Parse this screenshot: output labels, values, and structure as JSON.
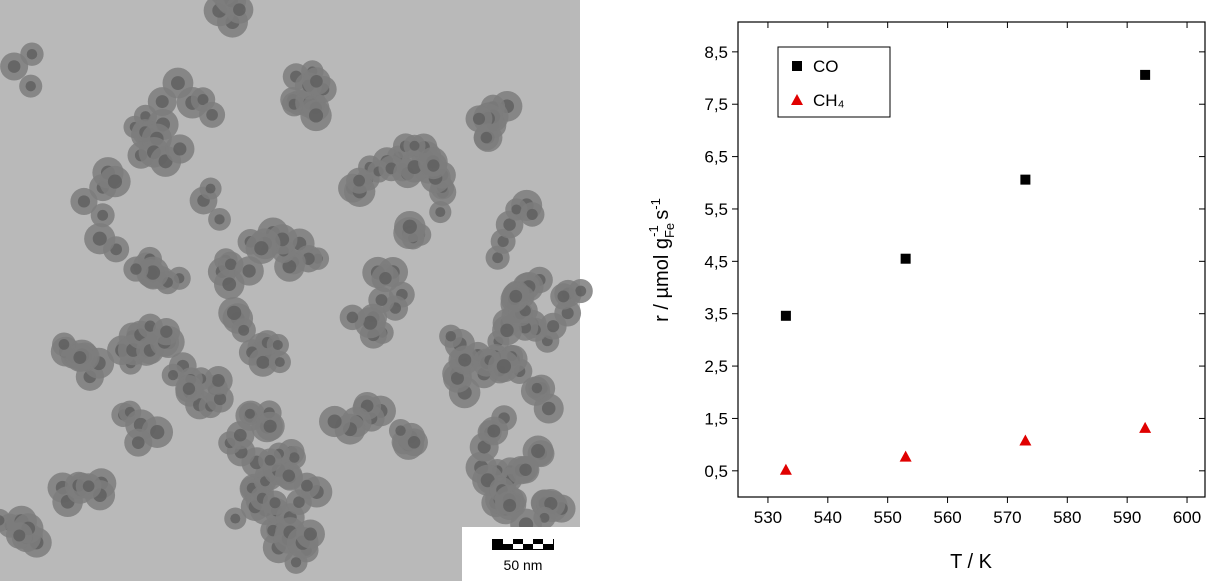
{
  "image": {
    "scale_bar": "50 nm"
  },
  "chart_data": {
    "type": "scatter",
    "x_label": "T / K",
    "y_label": [
      "r / µmol g",
      "Fe",
      "-1",
      " s",
      "-1"
    ],
    "x": [
      533,
      553,
      573,
      593
    ],
    "series": [
      {
        "name": "CO",
        "color": "#000000",
        "marker": "square",
        "values": [
          3.46,
          4.55,
          6.06,
          8.06
        ]
      },
      {
        "name": "CH₄",
        "color": "#e00000",
        "marker": "triangle",
        "values": [
          0.52,
          0.77,
          1.08,
          1.32
        ]
      }
    ],
    "xlim": [
      525,
      603
    ],
    "xticks": [
      530,
      540,
      550,
      560,
      570,
      580,
      590,
      600
    ],
    "ylim": [
      0,
      9.07
    ],
    "yticks": [
      {
        "value": 0.5,
        "label": "0,5"
      },
      {
        "value": 1.5,
        "label": "1,5"
      },
      {
        "value": 2.5,
        "label": "2,5"
      },
      {
        "value": 3.5,
        "label": "3,5"
      },
      {
        "value": 4.5,
        "label": "4,5"
      },
      {
        "value": 5.5,
        "label": "5,5"
      },
      {
        "value": 6.5,
        "label": "6,5"
      },
      {
        "value": 7.5,
        "label": "7,5"
      },
      {
        "value": 8.5,
        "label": "8,5"
      }
    ],
    "grid": false,
    "legend": "top-left"
  }
}
